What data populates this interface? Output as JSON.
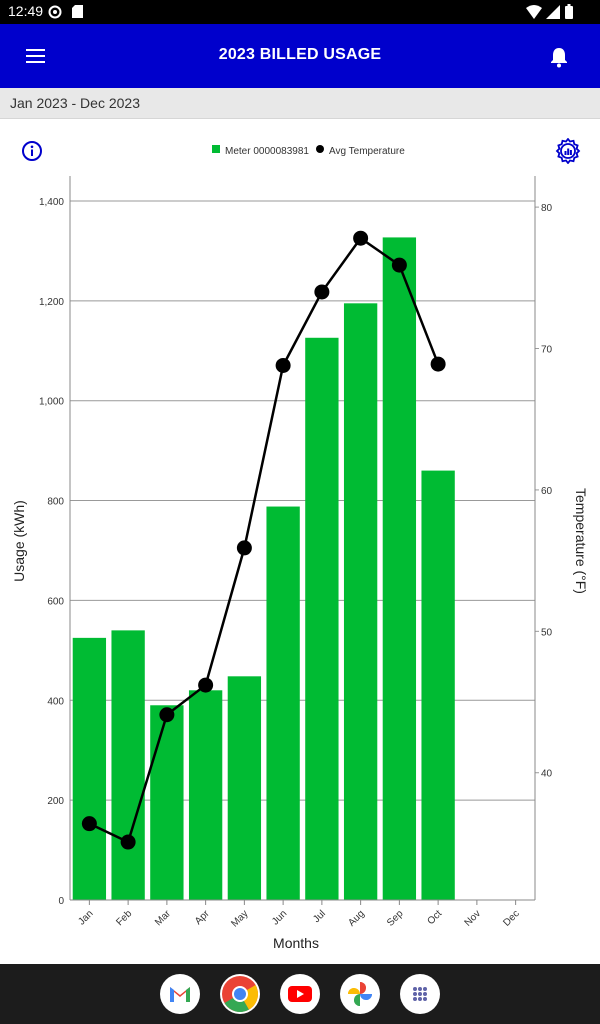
{
  "status_bar": {
    "time": "12:49"
  },
  "header": {
    "title": "2023 BILLED USAGE"
  },
  "subheader": {
    "date_range": "Jan 2023 - Dec 2023"
  },
  "chart_data": {
    "type": "bar",
    "categories": [
      "Jan",
      "Feb",
      "Mar",
      "Apr",
      "May",
      "Jun",
      "Jul",
      "Aug",
      "Sep",
      "Oct",
      "Nov",
      "Dec"
    ],
    "series": [
      {
        "name": "Meter 0000083981",
        "axis": "left",
        "chart": "bar",
        "color": "#00bb33",
        "values": [
          525,
          540,
          390,
          420,
          448,
          788,
          1126,
          1195,
          1327,
          860,
          null,
          null
        ]
      },
      {
        "name": "Avg Temperature",
        "axis": "right",
        "chart": "line",
        "color": "#000000",
        "values": [
          36.4,
          35.1,
          44.1,
          46.2,
          55.9,
          68.8,
          74.0,
          77.8,
          75.9,
          68.9,
          null,
          null
        ]
      }
    ],
    "xlabel": "Months",
    "ylabel": "Usage (kWh)",
    "y2label": "Temperature (°F)",
    "ylim": [
      0,
      1450
    ],
    "y2lim": [
      31.0,
      82.2
    ],
    "yticks": [
      0,
      200,
      400,
      600,
      800,
      1000,
      1200,
      1400
    ],
    "ytick_labels": [
      "0",
      "200",
      "400",
      "600",
      "800",
      "1,000",
      "1,200",
      "1,400"
    ],
    "y2ticks": [
      40,
      50,
      60,
      70,
      80
    ],
    "grid": true,
    "legend": "top-center"
  },
  "icons": {
    "menu": "menu-icon",
    "notifications": "bell-icon",
    "info": "info-icon",
    "chart_settings": "chart-settings-icon"
  },
  "dock": [
    "Gmail",
    "Chrome",
    "YouTube",
    "Photos",
    "App drawer"
  ]
}
